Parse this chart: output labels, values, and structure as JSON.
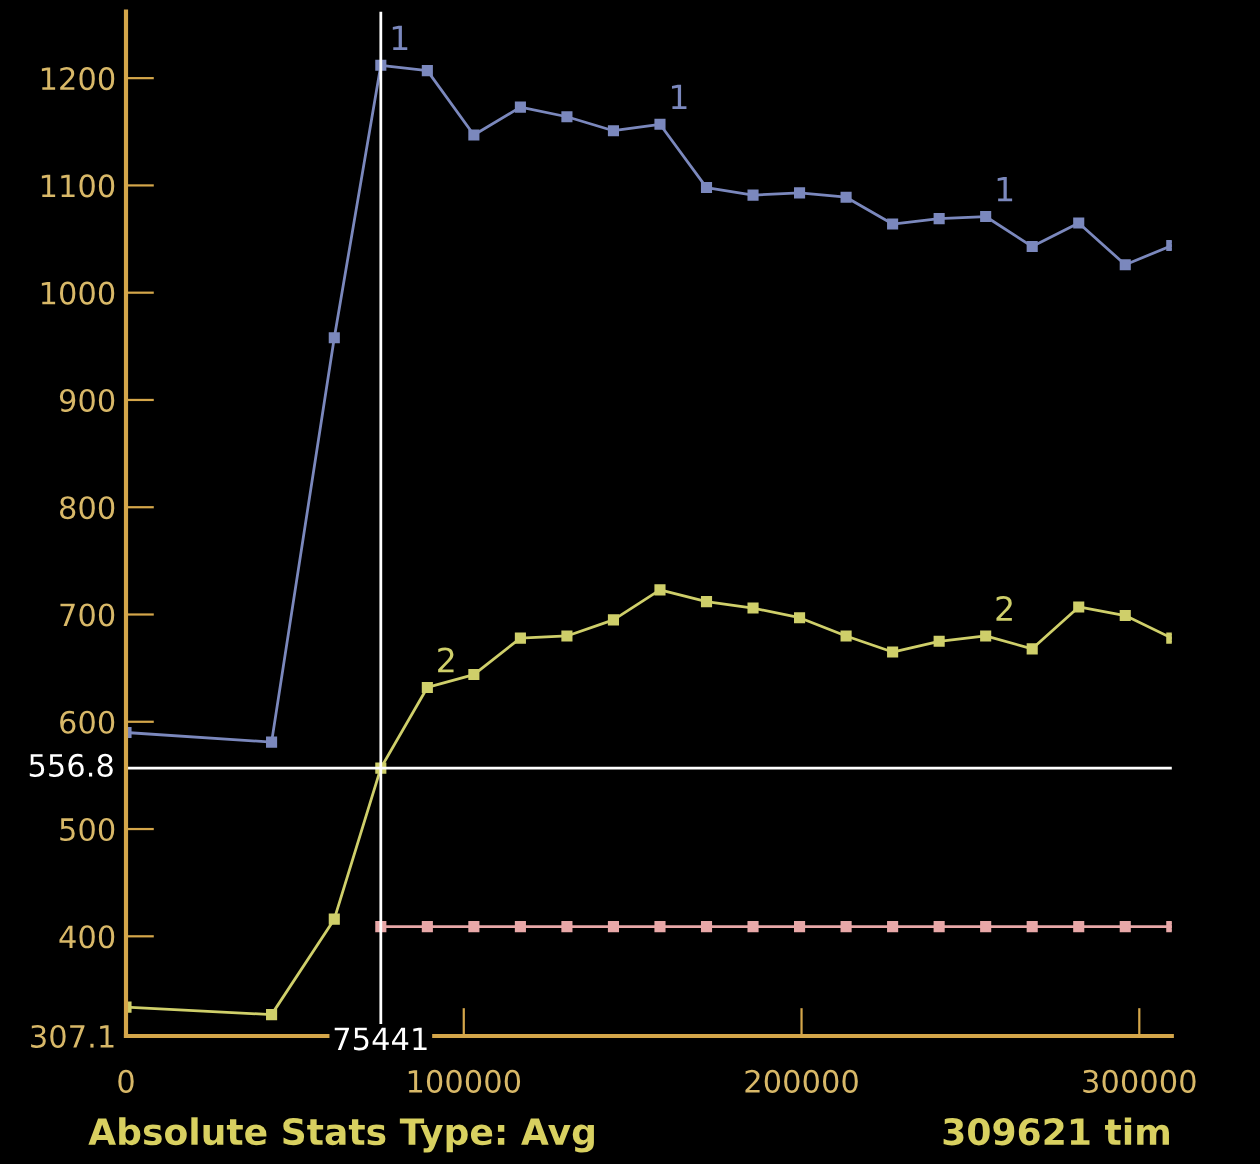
{
  "chart_data": {
    "type": "line",
    "marker": "square",
    "line_style": "solid",
    "grid": false,
    "xlim": [
      0,
      309621
    ],
    "ylim": [
      307.1,
      1262
    ],
    "xticks": [
      0,
      100000,
      200000,
      300000
    ],
    "yticks": [
      {
        "value": 307.1,
        "label": "307.1"
      },
      400,
      500,
      600,
      700,
      800,
      900,
      1000,
      1100,
      1200
    ],
    "series": [
      {
        "color": "#7b88bd",
        "x": [
          0,
          43100,
          61666,
          75441,
          89216,
          102991,
          116766,
          130541,
          144316,
          158091,
          171866,
          185641,
          199416,
          213191,
          226966,
          240741,
          254516,
          268291,
          282066,
          295841,
          309616
        ],
        "values": [
          590,
          581,
          958,
          1212,
          1207,
          1147,
          1173,
          1164,
          1151,
          1157,
          1098,
          1091,
          1093,
          1089,
          1064,
          1069,
          1071,
          1043,
          1065,
          1026,
          1044
        ]
      },
      {
        "color": "#cfcf6a",
        "x": [
          0,
          43100,
          61666,
          75441,
          89216,
          102991,
          116766,
          130541,
          144316,
          158091,
          171866,
          185641,
          199416,
          213191,
          226966,
          240741,
          254516,
          268291,
          282066,
          295841,
          309616
        ],
        "values": [
          334,
          327,
          416,
          556.8,
          632,
          644,
          678,
          680,
          695,
          723,
          712,
          706,
          697,
          680,
          665,
          675,
          680,
          668,
          707,
          699,
          678
        ]
      },
      {
        "color": "#e8a8a8",
        "x": [
          75441,
          89216,
          102991,
          116766,
          130541,
          144316,
          158091,
          171866,
          185641,
          199416,
          213191,
          226966,
          240741,
          254516,
          268291,
          282066,
          295841,
          309616
        ],
        "values": [
          409,
          409,
          409,
          409,
          409,
          409,
          409,
          409,
          409,
          409,
          409,
          409,
          409,
          409,
          409,
          409,
          409,
          409
        ]
      }
    ],
    "ref_lines": [
      {
        "axis": "x",
        "value": 75441,
        "label": "75441",
        "color": "#ffffff"
      },
      {
        "axis": "y",
        "value": 556.8,
        "label": "556.8",
        "color": "#ffffff"
      }
    ],
    "annotations": [
      {
        "text": "1",
        "x": 75441,
        "y": 1212
      },
      {
        "text": "1",
        "x": 158091,
        "y": 1157
      },
      {
        "text": "1",
        "x": 254516,
        "y": 1071
      },
      {
        "text": "2",
        "x": 89216,
        "y": 632
      },
      {
        "text": "2",
        "x": 254516,
        "y": 680
      },
      "Absolute Stats Type: Avg",
      "309621 tim"
    ]
  }
}
